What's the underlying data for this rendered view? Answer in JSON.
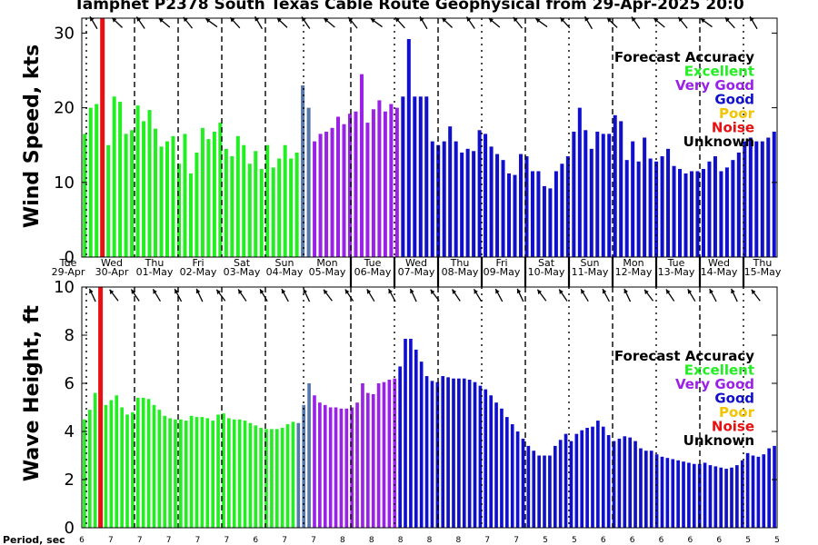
{
  "chart_data": {
    "title": "Tamphet P2378 South Texas Cable Route Geophysical from 29-Apr-2025 20:0",
    "colors": {
      "Excellent": "#22ee22",
      "Very Good": "#9a22e6",
      "Good": "#1010cc",
      "Poor": "#f2c500",
      "Noise": "#e81010",
      "Unknown": "#000000",
      "Transition": "#5577aa"
    },
    "legend": {
      "title": "Forecast Accuracy",
      "entries": [
        "Excellent",
        "Very Good",
        "Good",
        "Poor",
        "Noise",
        "Unknown"
      ],
      "placement": "top-right"
    },
    "day_labels": [
      {
        "day": "Tue",
        "date": "29-Apr"
      },
      {
        "day": "Wed",
        "date": "30-Apr"
      },
      {
        "day": "Thu",
        "date": "01-May"
      },
      {
        "day": "Fri",
        "date": "02-May"
      },
      {
        "day": "Sat",
        "date": "03-May"
      },
      {
        "day": "Sun",
        "date": "04-May"
      },
      {
        "day": "Mon",
        "date": "05-May"
      },
      {
        "day": "Tue",
        "date": "06-May"
      },
      {
        "day": "Wed",
        "date": "07-May"
      },
      {
        "day": "Thu",
        "date": "08-May"
      },
      {
        "day": "Fri",
        "date": "09-May"
      },
      {
        "day": "Sat",
        "date": "10-May"
      },
      {
        "day": "Sun",
        "date": "11-May"
      },
      {
        "day": "Mon",
        "date": "12-May"
      },
      {
        "day": "Tue",
        "date": "13-May"
      },
      {
        "day": "Wed",
        "date": "14-May"
      },
      {
        "day": "Thu",
        "date": "15-May"
      }
    ],
    "noise_marker_index": 3,
    "charts": [
      {
        "type": "bar",
        "ylabel": "Wind Speed, kts",
        "ylim": [
          0,
          32
        ],
        "yticks": [
          0,
          10,
          20,
          30
        ],
        "values": [
          16.5,
          20,
          20.5,
          16,
          15,
          21.5,
          20.8,
          16.5,
          17,
          20.3,
          18.2,
          19.7,
          17.2,
          14.8,
          15.5,
          16.2,
          12.5,
          16.5,
          11.2,
          14,
          17.3,
          15.8,
          16.8,
          18,
          14.5,
          13.5,
          16.2,
          15,
          12.5,
          14.2,
          11.8,
          15,
          12,
          13.2,
          15,
          13.2,
          14,
          23,
          20,
          15.5,
          16.5,
          16.8,
          17.3,
          18.8,
          17.8,
          19.2,
          19.5,
          24.5,
          18,
          19.8,
          21,
          19.5,
          20.5,
          20,
          21.5,
          29.2,
          21.5,
          21.5,
          21.5,
          15.5,
          15,
          15.5,
          17.5,
          15.5,
          14,
          14.5,
          14.2,
          17,
          16.5,
          14.8,
          13.8,
          13,
          11.2,
          11,
          13.8,
          13.5,
          11.5,
          11.5,
          9.5,
          9.2,
          11.5,
          12.5,
          13.5,
          16.8,
          20,
          17,
          14.5,
          16.8,
          16.5,
          16.5,
          19,
          18.2,
          13,
          15.5,
          12.8,
          16,
          13.2,
          12.8,
          13.5,
          14.5,
          12.2,
          11.8,
          11.2,
          11.5,
          11.5,
          11.8,
          12.8,
          13.5,
          11.5,
          12,
          13,
          14,
          15.5,
          16,
          15.5,
          15.5,
          16,
          16.8
        ],
        "quality": [
          "E",
          "E",
          "E",
          "E",
          "E",
          "E",
          "E",
          "E",
          "E",
          "E",
          "E",
          "E",
          "E",
          "E",
          "E",
          "E",
          "E",
          "E",
          "E",
          "E",
          "E",
          "E",
          "E",
          "E",
          "E",
          "E",
          "E",
          "E",
          "E",
          "E",
          "E",
          "E",
          "E",
          "E",
          "E",
          "E",
          "E",
          "T",
          "T",
          "V",
          "V",
          "V",
          "V",
          "V",
          "V",
          "V",
          "V",
          "V",
          "V",
          "V",
          "V",
          "V",
          "V",
          "V",
          "G",
          "G",
          "G",
          "G",
          "G",
          "G",
          "G",
          "G",
          "G",
          "G",
          "G",
          "G",
          "G",
          "G",
          "G",
          "G",
          "G",
          "G",
          "G",
          "G",
          "G",
          "G",
          "G",
          "G",
          "G",
          "G",
          "G",
          "G",
          "G",
          "G",
          "G",
          "G",
          "G",
          "G",
          "G",
          "G",
          "G",
          "G",
          "G",
          "G",
          "G",
          "G",
          "G",
          "G",
          "G",
          "G",
          "G",
          "G",
          "G",
          "G",
          "G",
          "G",
          "G",
          "G",
          "G",
          "G",
          "G",
          "G",
          "G",
          "G",
          "G",
          "G",
          "G",
          "G"
        ]
      },
      {
        "type": "bar",
        "ylabel": "Wave Height, ft",
        "ylim": [
          0,
          10
        ],
        "yticks": [
          0,
          2,
          4,
          6,
          8,
          10
        ],
        "values": [
          4.5,
          4.9,
          5.6,
          5.3,
          5.1,
          5.3,
          5.5,
          5,
          4.7,
          4.8,
          5.4,
          5.4,
          5.35,
          5.1,
          4.9,
          4.65,
          4.55,
          4.5,
          4.5,
          4.45,
          4.65,
          4.6,
          4.6,
          4.55,
          4.45,
          4.7,
          4.75,
          4.55,
          4.5,
          4.5,
          4.45,
          4.35,
          4.25,
          4.15,
          4.1,
          4.1,
          4.1,
          4.15,
          4.3,
          4.4,
          4.35,
          5.1,
          6,
          5.5,
          5.2,
          5.1,
          5,
          5,
          4.95,
          4.95,
          5,
          5.2,
          6,
          5.6,
          5.55,
          6,
          6.05,
          6.15,
          6.2,
          6.7,
          7.85,
          7.85,
          7.4,
          6.9,
          6.3,
          6.1,
          6.05,
          6.3,
          6.25,
          6.2,
          6.2,
          6.2,
          6.15,
          6.05,
          5.9,
          5.75,
          5.5,
          5.2,
          4.95,
          4.6,
          4.3,
          4,
          3.7,
          3.4,
          3.2,
          3,
          3,
          3,
          3.4,
          3.65,
          3.9,
          3.6,
          3.9,
          4.05,
          4.15,
          4.2,
          4.45,
          4.2,
          3.85,
          3.6,
          3.7,
          3.8,
          3.75,
          3.6,
          3.3,
          3.2,
          3.2,
          3.05,
          2.95,
          2.9,
          2.85,
          2.8,
          2.75,
          2.7,
          2.65,
          2.65,
          2.7,
          2.6,
          2.55,
          2.5,
          2.45,
          2.5,
          2.6,
          2.8,
          3.1,
          3,
          2.95,
          3.05,
          3.3,
          3.4
        ],
        "quality": [
          "E",
          "E",
          "E",
          "E",
          "E",
          "E",
          "E",
          "E",
          "E",
          "E",
          "E",
          "E",
          "E",
          "E",
          "E",
          "E",
          "E",
          "E",
          "E",
          "E",
          "E",
          "E",
          "E",
          "E",
          "E",
          "E",
          "E",
          "E",
          "E",
          "E",
          "E",
          "E",
          "E",
          "E",
          "E",
          "E",
          "E",
          "E",
          "E",
          "E",
          "T",
          "T",
          "T",
          "V",
          "V",
          "V",
          "V",
          "V",
          "V",
          "V",
          "V",
          "V",
          "V",
          "V",
          "V",
          "V",
          "V",
          "V",
          "V",
          "G",
          "G",
          "G",
          "G",
          "G",
          "G",
          "G",
          "G",
          "G",
          "G",
          "G",
          "G",
          "G",
          "G",
          "G",
          "G",
          "G",
          "G",
          "G",
          "G",
          "G",
          "G",
          "G",
          "G",
          "G",
          "G",
          "G",
          "G",
          "G",
          "G",
          "G",
          "G",
          "G",
          "G",
          "G",
          "G",
          "G",
          "G",
          "G",
          "G",
          "G",
          "G",
          "G",
          "G",
          "G",
          "G",
          "G",
          "G",
          "G",
          "G",
          "G",
          "G",
          "G",
          "G",
          "G",
          "G",
          "G",
          "G",
          "G",
          "G",
          "G",
          "G",
          "G",
          "G",
          "G",
          "G",
          "G",
          "G",
          "G",
          "G",
          "G"
        ]
      }
    ],
    "period_row": {
      "label": "Period, sec",
      "values": [
        "6",
        "7",
        "7",
        "7",
        "7",
        "7",
        "6",
        "7",
        "7",
        "8",
        "8",
        "8",
        "8",
        "8",
        "7",
        "7",
        "5",
        "5",
        "6",
        "6",
        "6",
        "6",
        "6",
        "5",
        "5"
      ]
    }
  }
}
